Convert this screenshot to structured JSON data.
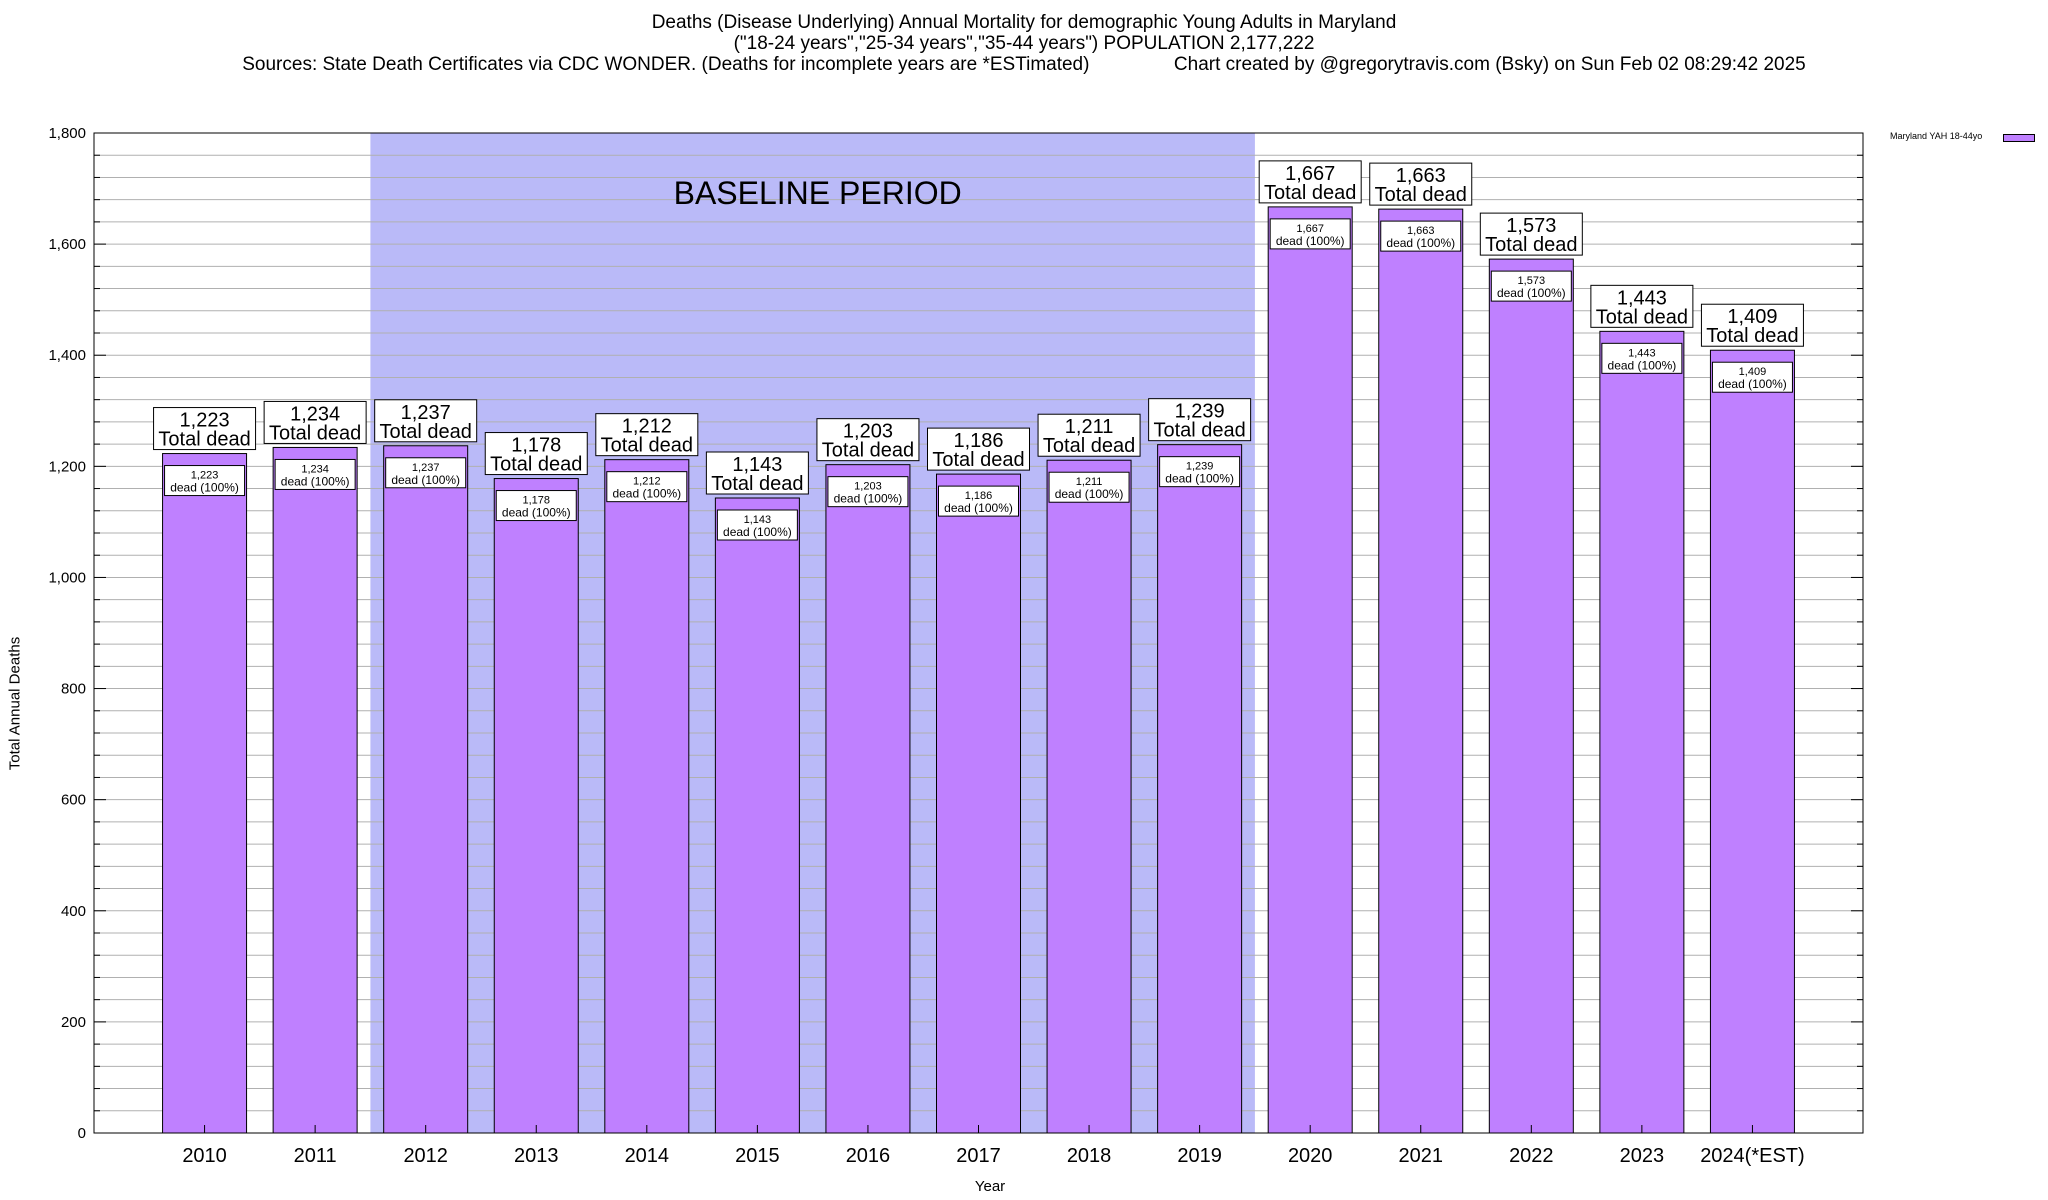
{
  "header": {
    "title_line1": "Deaths (Disease Underlying) Annual Mortality for demographic Young Adults in Maryland",
    "title_line2": "(\"18-24 years\",\"25-34 years\",\"35-44 years\") POPULATION 2,177,222",
    "title_line3": "Sources: State Death Certificates via CDC WONDER. (Deaths for incomplete years are *ESTimated)                Chart created by @gregorytravis.com (Bsky) on Sun Feb 02 08:29:42 2025"
  },
  "chart_data": {
    "type": "bar",
    "categories": [
      "2010",
      "2011",
      "2012",
      "2013",
      "2014",
      "2015",
      "2016",
      "2017",
      "2018",
      "2019",
      "2020",
      "2021",
      "2022",
      "2023",
      "2024(*EST)"
    ],
    "series": [
      {
        "name": "Maryland YAH 18-44yo",
        "values": [
          1223,
          1234,
          1237,
          1178,
          1212,
          1143,
          1203,
          1186,
          1211,
          1239,
          1667,
          1663,
          1573,
          1443,
          1409
        ]
      }
    ],
    "value_labels": [
      "1,223",
      "1,234",
      "1,237",
      "1,178",
      "1,212",
      "1,143",
      "1,203",
      "1,186",
      "1,211",
      "1,239",
      "1,667",
      "1,663",
      "1,573",
      "1,443",
      "1,409"
    ],
    "annotation_suffix": "Total dead",
    "inner_suffix": "dead (100%)",
    "baseline": {
      "label": "BASELINE PERIOD",
      "from": "2012",
      "to": "2019",
      "color": "#babaf8"
    },
    "xlabel": "Year",
    "ylabel": "Total Annual Deaths",
    "ylim": [
      0,
      1800
    ],
    "yticks": [
      0,
      200,
      400,
      600,
      800,
      1000,
      1200,
      1400,
      1600,
      1800
    ],
    "ytick_labels": [
      "0",
      "200",
      "400",
      "600",
      "800",
      "1,000",
      "1,200",
      "1,400",
      "1,600",
      "1,800"
    ],
    "grid": true,
    "legend_position": "top-right outside",
    "bar_color": "#bf80ff"
  }
}
